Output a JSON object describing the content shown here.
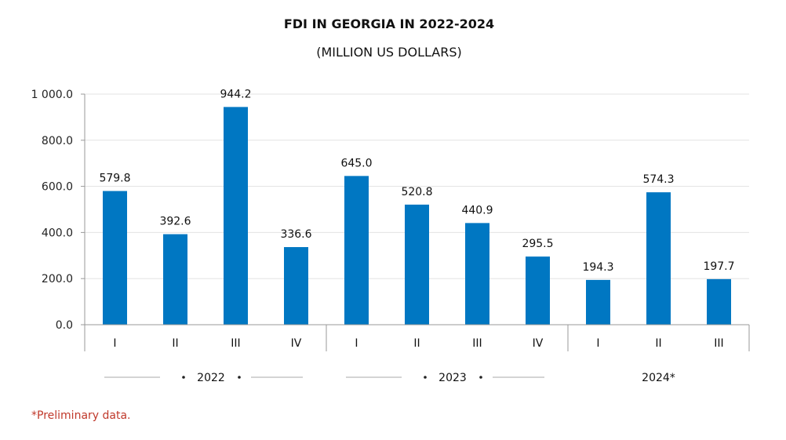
{
  "chart_data": {
    "type": "bar",
    "title": "FDI IN GEORGIA IN 2022-2024",
    "subtitle": "(MILLION US DOLLARS)",
    "categories": [
      "I",
      "II",
      "III",
      "IV",
      "I",
      "II",
      "III",
      "IV",
      "I",
      "II",
      "III"
    ],
    "values": [
      579.8,
      392.6,
      944.2,
      336.6,
      645.0,
      520.8,
      440.9,
      295.5,
      194.3,
      574.3,
      197.7
    ],
    "value_labels": [
      "579.8",
      "392.6",
      "944.2",
      "336.6",
      "645.0",
      "520.8",
      "440.9",
      "295.5",
      "194.3",
      "574.3",
      "197.7"
    ],
    "groups": [
      {
        "label": "2022",
        "count": 4
      },
      {
        "label": "2023",
        "count": 4
      },
      {
        "label": "2024*",
        "count": 3
      }
    ],
    "ylim": [
      0,
      1000
    ],
    "yticks": [
      {
        "value": 0,
        "label": "0.0"
      },
      {
        "value": 200,
        "label": "200.0"
      },
      {
        "value": 400,
        "label": "400.0"
      },
      {
        "value": 600,
        "label": "600.0"
      },
      {
        "value": 800,
        "label": "800.0"
      },
      {
        "value": 1000,
        "label": "1 000.0"
      }
    ],
    "grid": true,
    "bar_color": "#0077c2",
    "note": "*Preliminary data."
  }
}
